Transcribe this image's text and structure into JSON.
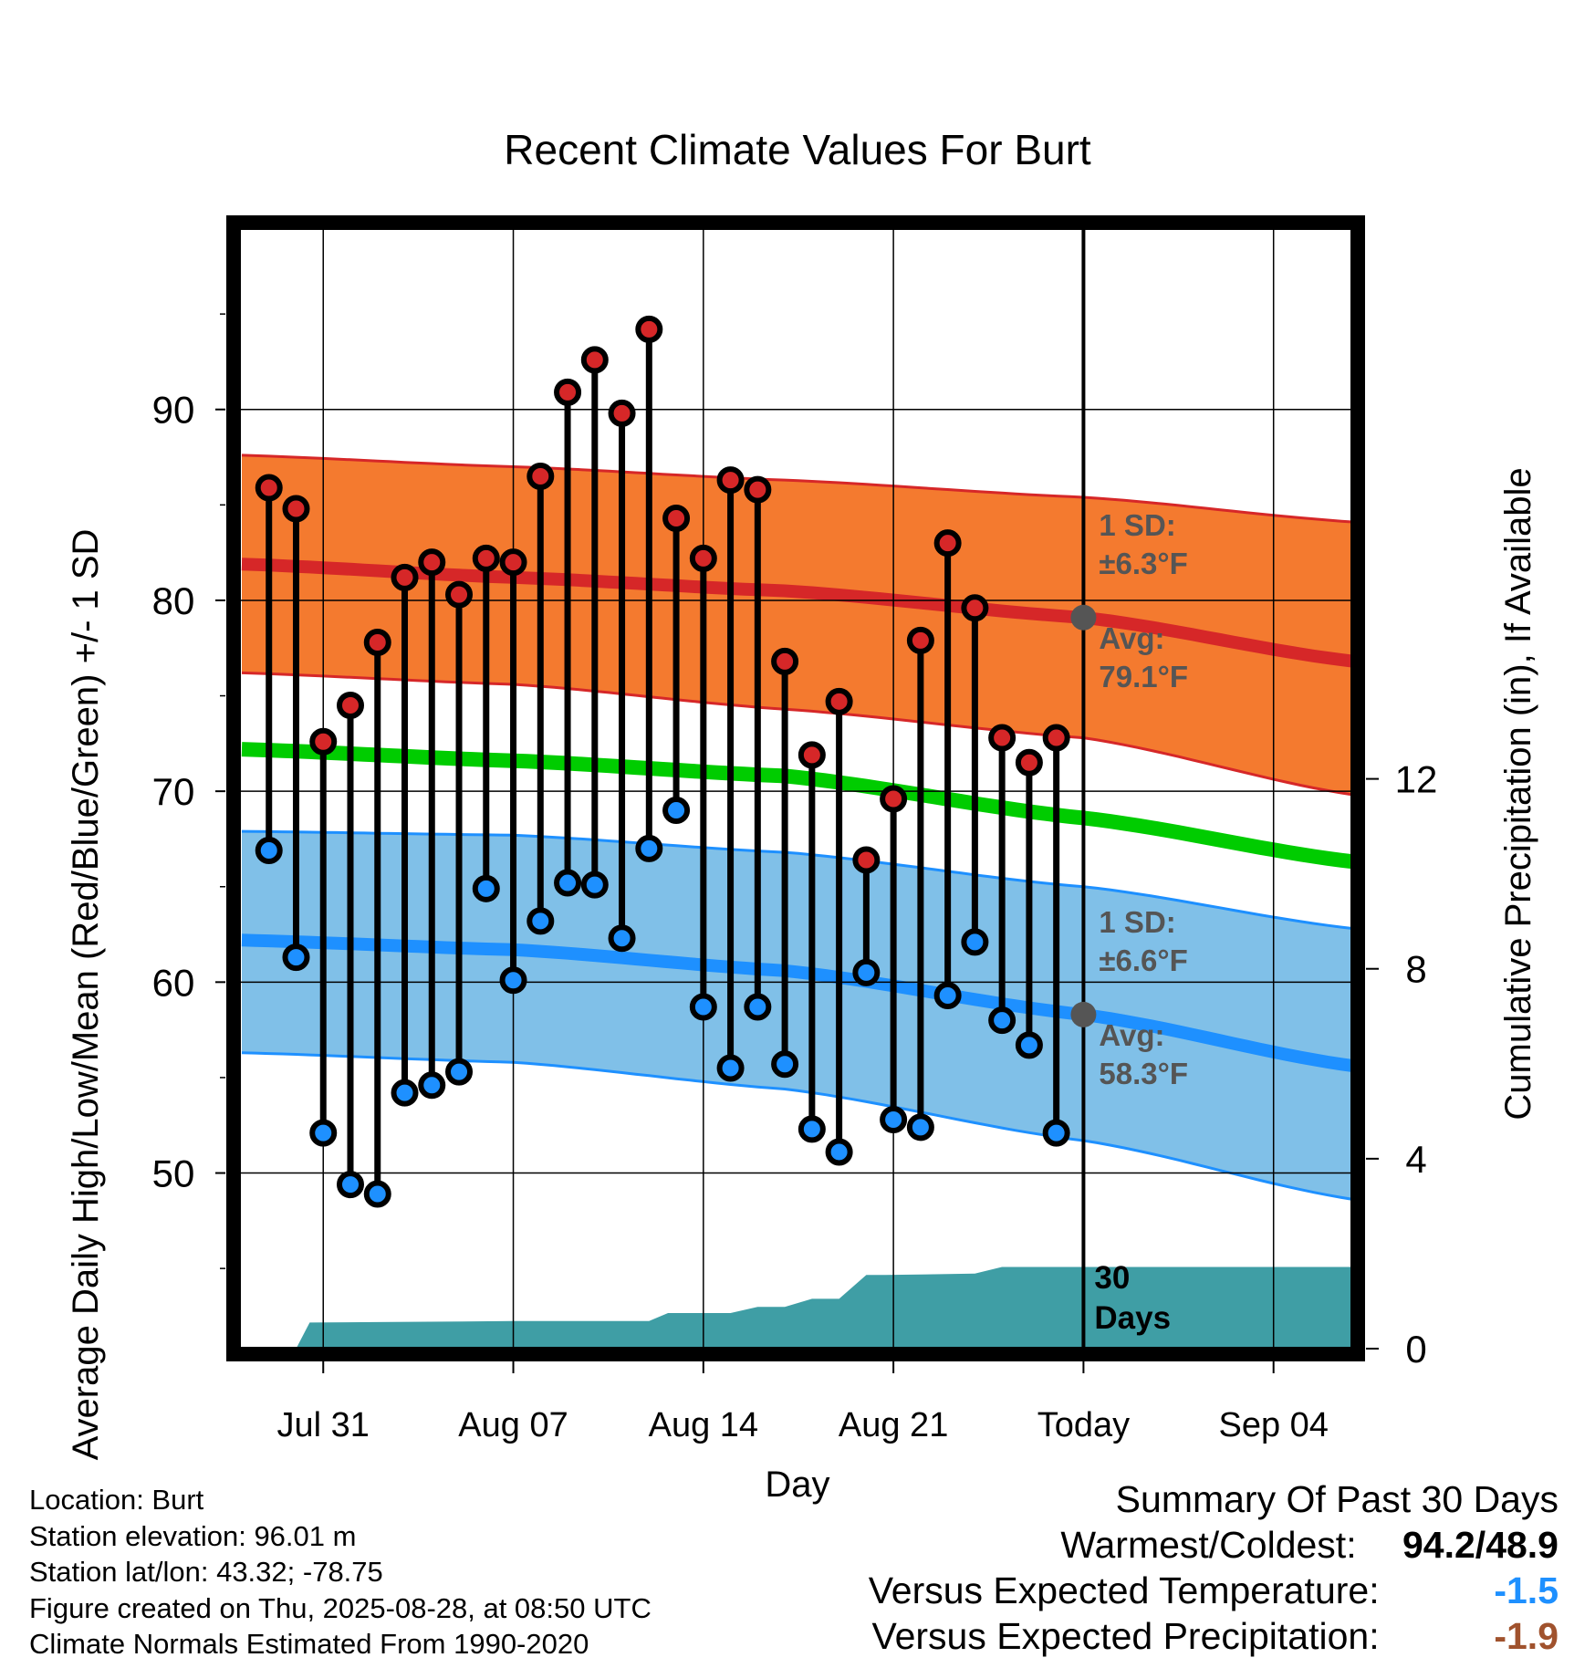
{
  "chart_data": {
    "type": "line",
    "title": "Recent Climate Values For Burt",
    "xlabel": "Day",
    "ylabel": "Average Daily High/Low/Mean (Red/Blue/Green) +/- 1 SD",
    "ylabel_right": "Cumulative Precipitation (in), If Available",
    "x_ticks": [
      {
        "day": 3,
        "label": "Jul 31"
      },
      {
        "day": 10,
        "label": "Aug 07"
      },
      {
        "day": 17,
        "label": "Aug 14"
      },
      {
        "day": 24,
        "label": "Aug 21"
      },
      {
        "day": 31,
        "label": "Today"
      },
      {
        "day": 38,
        "label": "Sep 04"
      }
    ],
    "y_ticks": [
      50,
      60,
      70,
      80,
      90
    ],
    "y_minor_ticks": [
      45,
      55,
      65,
      75,
      85,
      95
    ],
    "y_right_ticks": [
      0,
      4,
      8,
      12
    ],
    "ylim": [
      40.8,
      99.5
    ],
    "ylim_right": [
      0,
      23.6
    ],
    "xlim": [
      -0.1,
      40.9
    ],
    "grid": true,
    "today_day": 31,
    "obs_days": [
      1,
      2,
      3,
      4,
      5,
      6,
      7,
      8,
      9,
      10,
      11,
      12,
      13,
      14,
      15,
      16,
      17,
      18,
      19,
      20,
      21,
      22,
      23,
      24,
      25,
      26,
      27,
      28,
      29,
      30
    ],
    "series": [
      {
        "name": "High",
        "color": "#d62728",
        "values": [
          85.9,
          84.8,
          72.6,
          74.5,
          77.8,
          81.2,
          82.0,
          80.3,
          82.2,
          82.0,
          86.5,
          90.9,
          92.6,
          89.8,
          94.2,
          84.3,
          82.2,
          86.3,
          85.8,
          76.8,
          71.9,
          74.7,
          66.4,
          69.6,
          77.9,
          83.0,
          79.6,
          72.8,
          71.5,
          72.8
        ]
      },
      {
        "name": "Low",
        "color": "#1e90ff",
        "values": [
          66.9,
          61.3,
          52.1,
          49.4,
          48.9,
          54.2,
          54.6,
          55.3,
          64.9,
          60.1,
          63.2,
          65.2,
          65.1,
          62.3,
          67.0,
          69.0,
          58.7,
          55.5,
          58.7,
          55.7,
          52.3,
          51.1,
          60.5,
          52.8,
          52.4,
          59.3,
          62.1,
          58.0,
          56.7,
          52.1
        ]
      }
    ],
    "normals": {
      "days": [
        0,
        10,
        20,
        31,
        41
      ],
      "high_avg": [
        81.9,
        81.2,
        80.5,
        79.1,
        76.8
      ],
      "high_upper": [
        87.6,
        87.0,
        86.3,
        85.4,
        84.1
      ],
      "high_lower": [
        76.2,
        75.6,
        74.3,
        72.8,
        69.8
      ],
      "low_avg": [
        62.2,
        61.7,
        60.6,
        58.3,
        55.6
      ],
      "low_upper": [
        67.9,
        67.7,
        66.8,
        65.0,
        62.8
      ],
      "low_lower": [
        56.3,
        55.8,
        54.4,
        51.7,
        48.6
      ],
      "mean_avg": [
        72.2,
        71.6,
        70.8,
        68.6,
        66.3
      ]
    },
    "precip": {
      "days": [
        0,
        2,
        2.5,
        5,
        10,
        15,
        15.7,
        18,
        19,
        20,
        21,
        22,
        23,
        23.7,
        27,
        28,
        29,
        30,
        31,
        41
      ],
      "values": [
        0,
        0,
        0.55,
        0.56,
        0.58,
        0.58,
        0.75,
        0.75,
        0.88,
        0.88,
        1.05,
        1.05,
        1.55,
        1.55,
        1.58,
        1.72,
        1.72,
        1.72,
        1.72,
        1.72
      ]
    },
    "annotations": {
      "high_sd": "1 SD:",
      "high_sd_value": "±6.3°F",
      "high_avg_label": "Avg:",
      "high_avg_value": "79.1°F",
      "low_sd": "1 SD:",
      "low_sd_value": "±6.6°F",
      "low_avg_label": "Avg:",
      "low_avg_value": "58.3°F",
      "window_number": "30",
      "window_unit": "Days"
    },
    "colors": {
      "high_band": "#f47a2f",
      "high_line": "#d62728",
      "low_band": "#80c0e8",
      "low_line": "#1e90ff",
      "mean_line": "#00cc00",
      "precip": "#3f9ea5",
      "annotation": "#555555"
    }
  },
  "info": {
    "location": "Location: Burt",
    "elevation": "Station elevation: 96.01 m",
    "latlon": "Station lat/lon: 43.32; -78.75",
    "created": "Figure created on Thu, 2025-08-28, at 08:50 UTC",
    "normals": "Climate Normals Estimated From 1990-2020"
  },
  "summary": {
    "title": "Summary Of Past 30 Days",
    "warm_cold_label": "Warmest/Coldest:",
    "warm_cold_value": "94.2/48.9",
    "temp_label": "Versus Expected Temperature:",
    "temp_value": "-1.5",
    "precip_label": "Versus Expected Precipitation:",
    "precip_value": "-1.9"
  }
}
